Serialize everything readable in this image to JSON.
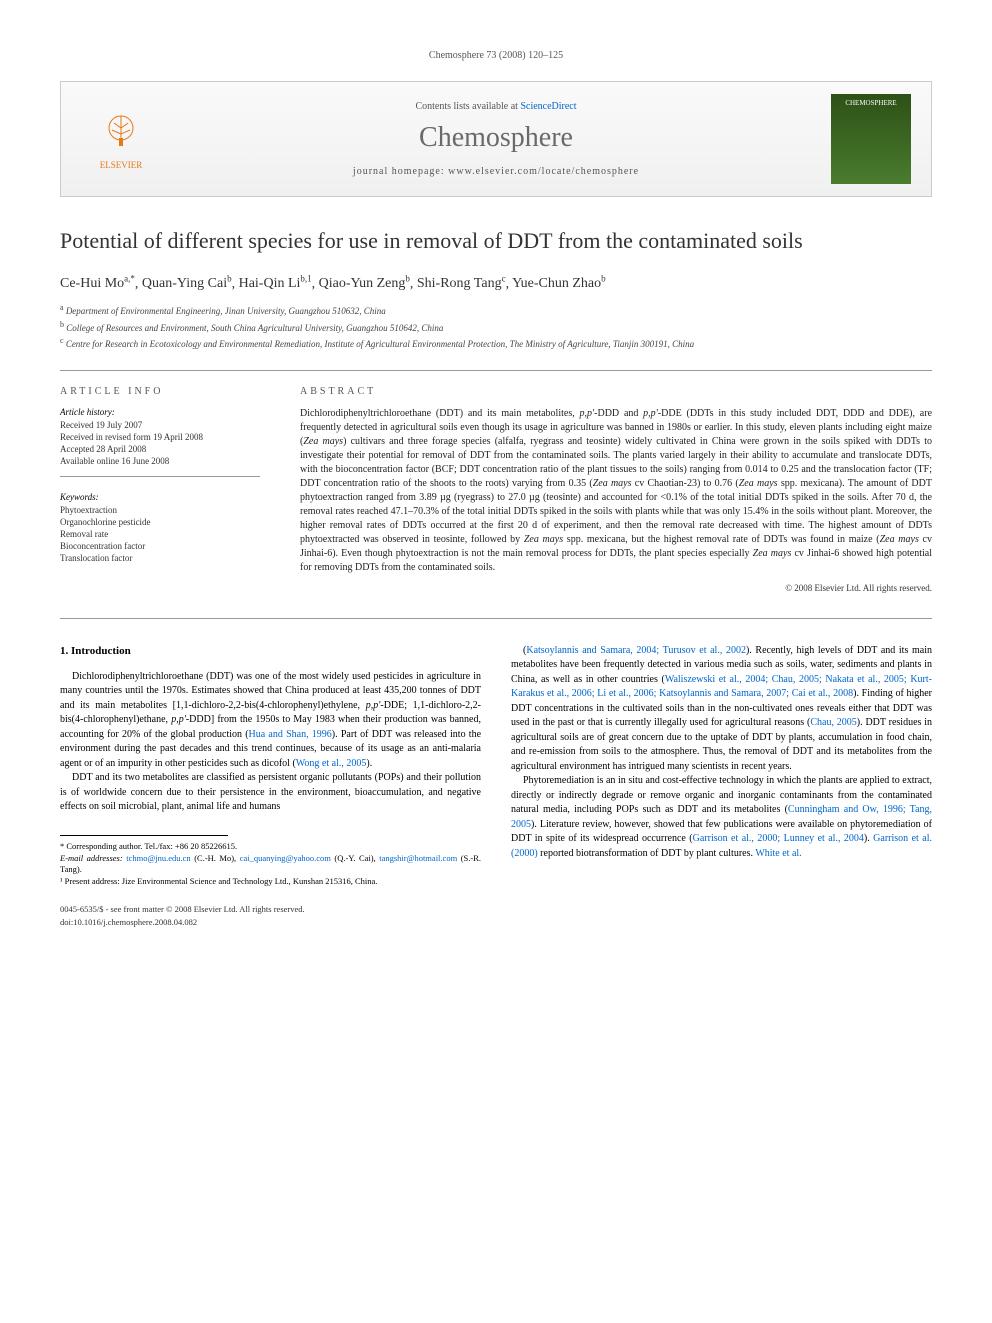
{
  "header": {
    "citation": "Chemosphere 73 (2008) 120–125"
  },
  "banner": {
    "publisher": "ELSEVIER",
    "contents_prefix": "Contents lists available at ",
    "contents_link": "ScienceDirect",
    "journal": "Chemosphere",
    "homepage": "journal homepage: www.elsevier.com/locate/chemosphere",
    "cover_label": "CHEMOSPHERE"
  },
  "title": "Potential of different species for use in removal of DDT from the contaminated soils",
  "authors": [
    {
      "name": "Ce-Hui Mo",
      "sup": "a,*"
    },
    {
      "name": "Quan-Ying Cai",
      "sup": "b"
    },
    {
      "name": "Hai-Qin Li",
      "sup": "b,1"
    },
    {
      "name": "Qiao-Yun Zeng",
      "sup": "b"
    },
    {
      "name": "Shi-Rong Tang",
      "sup": "c"
    },
    {
      "name": "Yue-Chun Zhao",
      "sup": "b"
    }
  ],
  "affiliations": [
    {
      "sup": "a",
      "text": "Department of Environmental Engineering, Jinan University, Guangzhou 510632, China"
    },
    {
      "sup": "b",
      "text": "College of Resources and Environment, South China Agricultural University, Guangzhou 510642, China"
    },
    {
      "sup": "c",
      "text": "Centre for Research in Ecotoxicology and Environmental Remediation, Institute of Agricultural Environmental Protection, The Ministry of Agriculture, Tianjin 300191, China"
    }
  ],
  "article_info": {
    "heading": "ARTICLE INFO",
    "history_label": "Article history:",
    "history": [
      "Received 19 July 2007",
      "Received in revised form 19 April 2008",
      "Accepted 28 April 2008",
      "Available online 16 June 2008"
    ],
    "keywords_label": "Keywords:",
    "keywords": [
      "Phytoextraction",
      "Organochlorine pesticide",
      "Removal rate",
      "Bioconcentration factor",
      "Translocation factor"
    ]
  },
  "abstract": {
    "heading": "ABSTRACT",
    "text_parts": [
      "Dichlorodiphenyltrichloroethane (DDT) and its main metabolites, ",
      "p,p'",
      "-DDD and ",
      "p,p'",
      "-DDE (DDTs in this study included DDT, DDD and DDE), are frequently detected in agricultural soils even though its usage in agriculture was banned in 1980s or earlier. In this study, eleven plants including eight maize (",
      "Zea mays",
      ") cultivars and three forage species (alfalfa, ryegrass and teosinte) widely cultivated in China were grown in the soils spiked with DDTs to investigate their potential for removal of DDT from the contaminated soils. The plants varied largely in their ability to accumulate and translocate DDTs, with the bioconcentration factor (BCF; DDT concentration ratio of the plant tissues to the soils) ranging from 0.014 to 0.25 and the translocation factor (TF; DDT concentration ratio of the shoots to the roots) varying from 0.35 (",
      "Zea mays",
      " cv Chaotian-23) to 0.76 (",
      "Zea mays",
      " spp. mexicana). The amount of DDT phytoextraction ranged from 3.89 µg (ryegrass) to 27.0 µg (teosinte) and accounted for <0.1% of the total initial DDTs spiked in the soils. After 70 d, the removal rates reached 47.1–70.3% of the total initial DDTs spiked in the soils with plants while that was only 15.4% in the soils without plant. Moreover, the higher removal rates of DDTs occurred at the first 20 d of experiment, and then the removal rate decreased with time. The highest amount of DDTs phytoextracted was observed in teosinte, followed by ",
      "Zea mays",
      " spp. mexicana, but the highest removal rate of DDTs was found in maize (",
      "Zea mays",
      " cv Jinhai-6). Even though phytoextraction is not the main removal process for DDTs, the plant species especially ",
      "Zea mays",
      " cv Jinhai-6 showed high potential for removing DDTs from the contaminated soils."
    ],
    "copyright": "© 2008 Elsevier Ltd. All rights reserved."
  },
  "body": {
    "section_heading": "1. Introduction",
    "col1_paragraphs": [
      {
        "plain": "Dichlorodiphenyltrichloroethane (DDT) was one of the most widely used pesticides in agriculture in many countries until the 1970s. Estimates showed that China produced at least 435,200 tonnes of DDT and its main metabolites [1,1-dichloro-2,2-bis(4-chlorophenyl)ethylene, ",
        "ital1": "p,p'",
        "plain2": "-DDE; 1,1-dichloro-2,2-bis(4-chlorophenyl)ethane, ",
        "ital2": "p,p'",
        "plain3": "-DDD] from the 1950s to May 1983 when their production was banned, accounting for 20% of the global production (",
        "ref1": "Hua and Shan, 1996",
        "plain4": "). Part of DDT was released into the environment during the past decades and this trend continues, because of its usage as an anti-malaria agent or of an impurity in other pesticides such as dicofol (",
        "ref2": "Wong et al., 2005",
        "plain5": ")."
      },
      {
        "plain": "DDT and its two metabolites are classified as persistent organic pollutants (POPs) and their pollution is of worldwide concern due to their persistence in the environment, bioaccumulation, and negative effects on soil microbial, plant, animal life and humans"
      }
    ],
    "col2_paragraphs": [
      {
        "plain": "(",
        "ref1": "Katsoylannis and Samara, 2004; Turusov et al., 2002",
        "plain2": "). Recently, high levels of DDT and its main metabolites have been frequently detected in various media such as soils, water, sediments and plants in China, as well as in other countries (",
        "ref2": "Waliszewski et al., 2004; Chau, 2005; Nakata et al., 2005; Kurt-Karakus et al., 2006; Li et al., 2006; Katsoylannis and Samara, 2007; Cai et al., 2008",
        "plain3": "). Finding of higher DDT concentrations in the cultivated soils than in the non-cultivated ones reveals either that DDT was used in the past or that is currently illegally used for agricultural reasons (",
        "ref3": "Chau, 2005",
        "plain4": "). DDT residues in agricultural soils are of great concern due to the uptake of DDT by plants, accumulation in food chain, and re-emission from soils to the atmosphere. Thus, the removal of DDT and its metabolites from the agricultural environment has intrigued many scientists in recent years."
      },
      {
        "plain": "Phytoremediation is an in situ and cost-effective technology in which the plants are applied to extract, directly or indirectly degrade or remove organic and inorganic contaminants from the contaminated natural media, including POPs such as DDT and its metabolites (",
        "ref1": "Cunningham and Ow, 1996; Tang, 2005",
        "plain2": "). Literature review, however, showed that few publications were available on phytoremediation of DDT in spite of its widespread occurrence (",
        "ref2": "Garrison et al., 2000; Lunney et al., 2004",
        "plain3": "). ",
        "ref3": "Garrison et al. (2000)",
        "plain4": " reported biotransformation of DDT by plant cultures. ",
        "ref4": "White et al."
      }
    ]
  },
  "footnotes": {
    "corresponding": "* Corresponding author. Tel./fax: +86 20 85226615.",
    "email_label": "E-mail addresses: ",
    "emails": [
      {
        "addr": "tchmo@jnu.edu.cn",
        "who": " (C.-H. Mo), "
      },
      {
        "addr": "cai_quanying@yahoo.com",
        "who": " (Q.-Y. Cai), "
      },
      {
        "addr": "tangshir@hotmail.com",
        "who": " (S.-R. Tang)."
      }
    ],
    "present": "¹ Present address: Jize Environmental Science and Technology Ltd., Kunshan 215316, China."
  },
  "doi": {
    "line1": "0045-6535/$ - see front matter © 2008 Elsevier Ltd. All rights reserved.",
    "line2": "doi:10.1016/j.chemosphere.2008.04.082"
  },
  "colors": {
    "link": "#0066cc",
    "elsevier_orange": "#e67817",
    "heading_gray": "#555555"
  }
}
